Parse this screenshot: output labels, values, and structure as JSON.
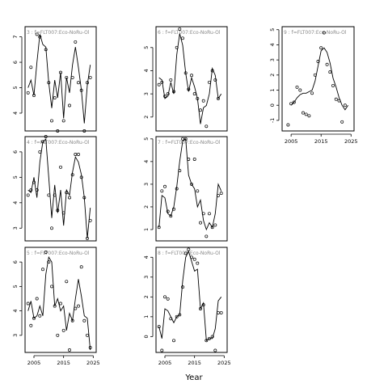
{
  "xlabel": "Year",
  "chart_data": [
    {
      "type": "line",
      "title": "3 : f=FLT007:Eco-NoRu-Ol",
      "xlim": [
        2002,
        2026
      ],
      "ylim": [
        3.3,
        7.4
      ],
      "yticks": [
        4,
        5,
        6,
        7
      ],
      "xticks": [],
      "series": [
        {
          "kind": "line",
          "x": [
            2003,
            2004,
            2005,
            2006,
            2007,
            2008,
            2009,
            2010,
            2011,
            2012,
            2013,
            2014,
            2015,
            2016,
            2017,
            2018,
            2019,
            2020,
            2021,
            2022,
            2023,
            2024
          ],
          "y": [
            5.0,
            5.3,
            4.7,
            6.0,
            7.1,
            6.7,
            6.6,
            5.2,
            4.2,
            5.3,
            4.6,
            5.6,
            3.8,
            5.4,
            4.8,
            5.9,
            6.6,
            5.8,
            4.9,
            3.6,
            5.1,
            5.9
          ]
        },
        {
          "kind": "points",
          "x": [
            2003,
            2004,
            2005,
            2006,
            2007,
            2009,
            2010,
            2011,
            2012,
            2013,
            2014,
            2015,
            2016,
            2017,
            2018,
            2019,
            2020,
            2021,
            2022,
            2023,
            2024
          ],
          "y": [
            4.8,
            5.8,
            4.7,
            7.1,
            7.0,
            6.5,
            5.2,
            3.7,
            4.6,
            3.3,
            5.6,
            3.7,
            5.4,
            4.3,
            5.4,
            6.8,
            5.2,
            4.9,
            3.3,
            5.2,
            5.4
          ]
        }
      ]
    },
    {
      "type": "line",
      "title": "6 : f=FLT007:Eco-NoRu-Ol",
      "xlim": [
        2002,
        2026
      ],
      "ylim": [
        1.4,
        5.9
      ],
      "yticks": [
        2,
        3,
        4,
        5
      ],
      "xticks": [],
      "series": [
        {
          "kind": "line",
          "x": [
            2003,
            2004,
            2005,
            2006,
            2007,
            2008,
            2009,
            2010,
            2011,
            2012,
            2013,
            2014,
            2015,
            2016,
            2017,
            2018,
            2019,
            2020,
            2021,
            2022,
            2023,
            2024
          ],
          "y": [
            3.7,
            3.6,
            2.8,
            2.9,
            3.5,
            3.0,
            4.7,
            5.6,
            5.1,
            3.9,
            3.1,
            3.7,
            3.3,
            2.8,
            1.7,
            2.4,
            2.5,
            3.0,
            4.1,
            3.8,
            2.8,
            3.0
          ]
        },
        {
          "kind": "points",
          "x": [
            2003,
            2004,
            2005,
            2006,
            2007,
            2008,
            2009,
            2010,
            2011,
            2012,
            2013,
            2014,
            2015,
            2016,
            2017,
            2018,
            2019,
            2020,
            2021,
            2022,
            2023
          ],
          "y": [
            3.4,
            3.5,
            2.9,
            3.0,
            3.6,
            3.1,
            5.0,
            5.8,
            5.4,
            3.9,
            3.2,
            3.8,
            3.0,
            2.8,
            2.3,
            2.7,
            1.6,
            3.5,
            4.0,
            3.6,
            2.8
          ]
        }
      ]
    },
    {
      "type": "line",
      "title": "9 : f=FLT007:Eco-NoRu-Ol",
      "xlim": [
        2002,
        2026
      ],
      "ylim": [
        -1.7,
        5.2
      ],
      "yticks": [
        -1,
        0,
        1,
        2,
        3,
        4,
        5
      ],
      "xticks": [
        2005,
        2015,
        2025
      ],
      "series": [
        {
          "kind": "line",
          "x": [
            2005,
            2006,
            2007,
            2008,
            2009,
            2010,
            2011,
            2012,
            2013,
            2014,
            2015,
            2016,
            2017,
            2018,
            2019,
            2020,
            2021,
            2022,
            2023,
            2024
          ],
          "y": [
            0.0,
            0.2,
            0.5,
            0.7,
            0.8,
            0.8,
            0.9,
            1.0,
            1.6,
            2.6,
            3.6,
            3.8,
            3.5,
            2.8,
            1.8,
            1.2,
            0.5,
            0.0,
            -0.3,
            0.0
          ]
        },
        {
          "kind": "points",
          "x": [
            2004,
            2005,
            2006,
            2007,
            2008,
            2009,
            2010,
            2011,
            2012,
            2013,
            2014,
            2015,
            2016,
            2017,
            2018,
            2019,
            2020,
            2021,
            2022,
            2023
          ],
          "y": [
            -1.3,
            0.1,
            0.2,
            1.2,
            1.0,
            -0.5,
            -0.6,
            -0.7,
            0.8,
            2.0,
            2.9,
            3.8,
            4.8,
            2.7,
            2.2,
            1.3,
            0.4,
            0.3,
            -1.1,
            0.0
          ]
        }
      ]
    },
    {
      "type": "line",
      "title": "4 : f=FLT007:Eco-NoRu-Ol",
      "xlim": [
        2002,
        2026
      ],
      "ylim": [
        2.5,
        6.6
      ],
      "yticks": [
        3,
        4,
        5,
        6
      ],
      "xticks": [],
      "series": [
        {
          "kind": "line",
          "x": [
            2003,
            2004,
            2005,
            2006,
            2007,
            2008,
            2009,
            2010,
            2011,
            2012,
            2013,
            2014,
            2015,
            2016,
            2017,
            2018,
            2019,
            2020,
            2021,
            2022,
            2023,
            2024
          ],
          "y": [
            4.5,
            4.4,
            5.0,
            4.2,
            5.6,
            6.4,
            6.5,
            5.0,
            3.4,
            4.7,
            3.6,
            4.5,
            3.1,
            4.5,
            4.3,
            5.2,
            5.8,
            5.6,
            5.1,
            4.2,
            2.6,
            3.8
          ]
        },
        {
          "kind": "points",
          "x": [
            2003,
            2004,
            2005,
            2006,
            2007,
            2008,
            2009,
            2010,
            2011,
            2012,
            2013,
            2014,
            2015,
            2016,
            2017,
            2018,
            2019,
            2020,
            2021,
            2022,
            2023,
            2024
          ],
          "y": [
            4.3,
            4.5,
            4.8,
            4.5,
            6.0,
            6.4,
            6.6,
            4.3,
            3.0,
            4.3,
            3.7,
            5.4,
            3.6,
            4.4,
            4.2,
            5.1,
            5.9,
            5.9,
            5.0,
            4.2,
            2.6,
            3.3
          ]
        }
      ]
    },
    {
      "type": "line",
      "title": "7 : f=FLT007:Eco-NoRu-Ol",
      "xlim": [
        2002,
        2026
      ],
      "ylim": [
        0.5,
        5.1
      ],
      "yticks": [
        1,
        2,
        3,
        4,
        5
      ],
      "xticks": [],
      "series": [
        {
          "kind": "line",
          "x": [
            2003,
            2004,
            2005,
            2006,
            2007,
            2008,
            2009,
            2010,
            2011,
            2012,
            2013,
            2014,
            2015,
            2016,
            2017,
            2018,
            2019,
            2020,
            2021,
            2022,
            2023,
            2024
          ],
          "y": [
            1.1,
            2.5,
            2.4,
            1.7,
            1.6,
            2.0,
            2.9,
            4.0,
            4.9,
            5.0,
            3.4,
            3.0,
            2.8,
            2.0,
            2.3,
            1.4,
            1.0,
            1.3,
            1.1,
            1.7,
            3.0,
            2.7
          ]
        },
        {
          "kind": "points",
          "x": [
            2003,
            2004,
            2005,
            2006,
            2007,
            2008,
            2009,
            2010,
            2011,
            2012,
            2013,
            2014,
            2015,
            2016,
            2017,
            2018,
            2019,
            2020,
            2021,
            2022,
            2023,
            2024
          ],
          "y": [
            1.1,
            2.7,
            2.9,
            1.8,
            1.6,
            1.9,
            2.8,
            3.6,
            5.0,
            5.0,
            4.1,
            3.0,
            4.1,
            2.7,
            1.3,
            1.7,
            0.7,
            1.7,
            1.1,
            1.2,
            2.5,
            2.6
          ]
        }
      ]
    },
    {
      "type": "line",
      "title": "5 : f=FLT007:Eco-NoRu-Ol",
      "xlim": [
        2002,
        2026
      ],
      "ylim": [
        2.3,
        6.6
      ],
      "yticks": [
        3,
        4,
        5,
        6
      ],
      "xticks": [
        2005,
        2015,
        2025
      ],
      "series": [
        {
          "kind": "line",
          "x": [
            2003,
            2004,
            2005,
            2006,
            2007,
            2008,
            2009,
            2010,
            2011,
            2012,
            2013,
            2014,
            2015,
            2016,
            2017,
            2018,
            2019,
            2020,
            2021,
            2022,
            2023,
            2024
          ],
          "y": [
            4.0,
            4.4,
            3.7,
            3.8,
            4.2,
            3.8,
            5.5,
            6.2,
            6.0,
            4.2,
            4.5,
            4.0,
            4.2,
            3.2,
            3.9,
            3.6,
            4.5,
            5.3,
            4.6,
            3.8,
            3.7,
            2.4
          ]
        },
        {
          "kind": "points",
          "x": [
            2003,
            2004,
            2005,
            2006,
            2007,
            2008,
            2009,
            2010,
            2011,
            2012,
            2013,
            2014,
            2015,
            2016,
            2017,
            2018,
            2019,
            2020,
            2021,
            2022,
            2023,
            2024
          ],
          "y": [
            4.3,
            3.4,
            3.7,
            4.5,
            3.8,
            5.7,
            6.4,
            6.0,
            5.0,
            4.2,
            3.0,
            4.3,
            3.2,
            5.2,
            2.4,
            3.6,
            4.1,
            4.2,
            5.8,
            3.6,
            3.0,
            2.5
          ]
        }
      ]
    },
    {
      "type": "line",
      "title": "8 : f=FLT007:Eco-NoRu-Ol",
      "xlim": [
        2002,
        2026
      ],
      "ylim": [
        -0.8,
        4.5
      ],
      "yticks": [
        0,
        1,
        2,
        3,
        4
      ],
      "xticks": [
        2005,
        2015,
        2025
      ],
      "series": [
        {
          "kind": "line",
          "x": [
            2003,
            2004,
            2005,
            2006,
            2007,
            2008,
            2009,
            2010,
            2011,
            2012,
            2013,
            2014,
            2015,
            2016,
            2017,
            2018,
            2019,
            2020,
            2021,
            2022,
            2023,
            2024
          ],
          "y": [
            0.5,
            -0.1,
            1.4,
            1.3,
            1.0,
            0.7,
            1.0,
            1.1,
            2.8,
            4.0,
            4.3,
            3.8,
            3.3,
            3.4,
            1.4,
            1.7,
            -0.2,
            -0.1,
            -0.1,
            0.4,
            1.8,
            2.0
          ]
        },
        {
          "kind": "points",
          "x": [
            2003,
            2004,
            2005,
            2006,
            2007,
            2008,
            2009,
            2010,
            2011,
            2012,
            2013,
            2014,
            2015,
            2016,
            2017,
            2018,
            2019,
            2020,
            2021,
            2022,
            2023,
            2024
          ],
          "y": [
            0.5,
            -0.7,
            2.0,
            1.9,
            0.9,
            -0.2,
            1.0,
            1.1,
            2.5,
            4.2,
            4.4,
            4.0,
            3.9,
            3.7,
            1.4,
            1.6,
            -0.2,
            -0.1,
            0.0,
            -0.7,
            1.2,
            1.2
          ]
        }
      ]
    }
  ]
}
